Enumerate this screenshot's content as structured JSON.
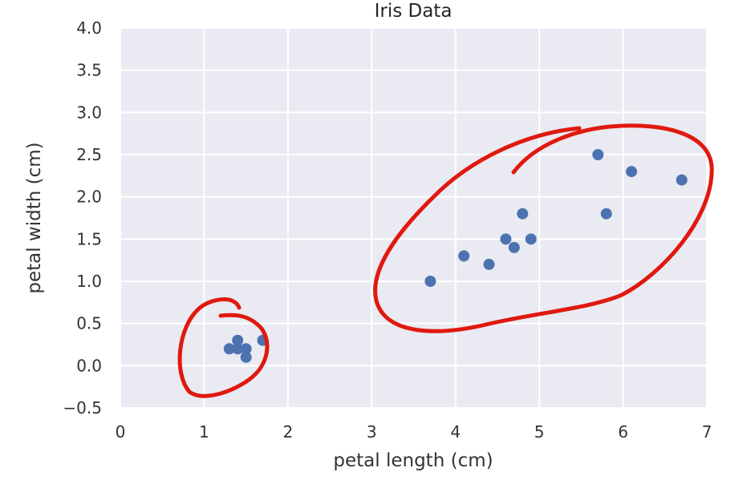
{
  "chart_data": {
    "type": "scatter",
    "title": "Iris Data",
    "xlabel": "petal length (cm)",
    "ylabel": "petal width (cm)",
    "xlim": [
      0,
      7
    ],
    "ylim": [
      -0.5,
      4.0
    ],
    "xticks": [
      "0",
      "1",
      "2",
      "3",
      "4",
      "5",
      "6",
      "7"
    ],
    "yticks": [
      "−0.5",
      "0.0",
      "0.5",
      "1.0",
      "1.5",
      "2.0",
      "2.5",
      "3.0",
      "3.5",
      "4.0"
    ],
    "grid": true,
    "colors": {
      "background": "#eaeaf2",
      "grid": "#ffffff",
      "points": "#4c72b0",
      "annotation": "#e0190f"
    },
    "series": [
      {
        "points": [
          {
            "x": 1.3,
            "y": 0.2
          },
          {
            "x": 1.4,
            "y": 0.2
          },
          {
            "x": 1.4,
            "y": 0.3
          },
          {
            "x": 1.5,
            "y": 0.2
          },
          {
            "x": 1.5,
            "y": 0.1
          },
          {
            "x": 1.7,
            "y": 0.3
          },
          {
            "x": 3.7,
            "y": 1.0
          },
          {
            "x": 4.1,
            "y": 1.3
          },
          {
            "x": 4.4,
            "y": 1.2
          },
          {
            "x": 4.6,
            "y": 1.5
          },
          {
            "x": 4.7,
            "y": 1.4
          },
          {
            "x": 4.8,
            "y": 1.8
          },
          {
            "x": 4.9,
            "y": 1.5
          },
          {
            "x": 5.7,
            "y": 2.5
          },
          {
            "x": 5.8,
            "y": 1.8
          },
          {
            "x": 6.1,
            "y": 2.3
          },
          {
            "x": 6.7,
            "y": 2.2
          }
        ]
      }
    ]
  }
}
